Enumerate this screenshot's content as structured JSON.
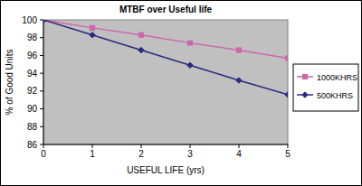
{
  "chart_data": {
    "type": "line",
    "title": "MTBF over Useful life",
    "x_label": "USEFUL LIFE (yrs)",
    "y_label": "% of Good Units",
    "x": [
      0,
      1,
      2,
      3,
      4,
      5
    ],
    "series": [
      {
        "name": "1000KHRS",
        "color": "#cc66aa",
        "marker": "square",
        "values": [
          100,
          99.1,
          98.3,
          97.4,
          96.6,
          95.7
        ]
      },
      {
        "name": "500KHRS",
        "color": "#2a2a80",
        "marker": "diamond",
        "values": [
          100,
          98.3,
          96.6,
          94.9,
          93.2,
          91.6
        ]
      }
    ],
    "xlim": [
      0,
      5
    ],
    "xticks": [
      0,
      1,
      2,
      3,
      4,
      5
    ],
    "ylim": [
      86,
      100
    ],
    "yticks": [
      86,
      88,
      90,
      92,
      94,
      96,
      98,
      100
    ],
    "grid": false,
    "legend": "right"
  }
}
